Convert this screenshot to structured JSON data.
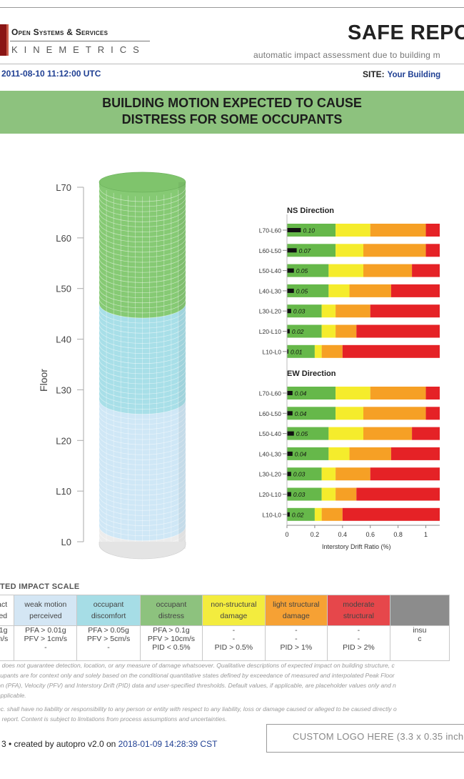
{
  "header": {
    "company_top": "Open Systems & Services",
    "company_bottom": "KINEMETRICS",
    "title": "SAFE REPO",
    "subtitle": "automatic impact assessment due to building m",
    "datetime": "2011-08-10 11:12:00 UTC",
    "site_label": "SITE:",
    "site_value": "Your Building"
  },
  "banner": {
    "line1": "BUILDING MOTION EXPECTED TO CAUSE",
    "line2": "DISTRESS FOR SOME OCCUPANTS"
  },
  "colors": {
    "green": "#66b84a",
    "yellow": "#f5ec2c",
    "orange": "#f6a025",
    "red": "#e52226",
    "building_green": "#86ca74",
    "building_cyan": "#a8dfe8",
    "building_lightblue": "#cfe7f6",
    "building_gray": "#ececec"
  },
  "building": {
    "ylabel": "Floor",
    "levels": [
      "L70",
      "L60",
      "L50",
      "L40",
      "L30",
      "L20",
      "L10",
      "L0"
    ],
    "zones": [
      {
        "name": "distress",
        "from": 47,
        "to": 71
      },
      {
        "name": "discomfort",
        "from": 28,
        "to": 47
      },
      {
        "name": "perceived",
        "from": 3,
        "to": 28
      },
      {
        "name": "none",
        "from": 0,
        "to": 3
      }
    ]
  },
  "chart_data": {
    "type": "bar",
    "xlabel": "Interstory Drift Ratio (%)",
    "xlim": [
      0,
      1.1
    ],
    "xticks": [
      "0",
      "0.2",
      "0.4",
      "0.6",
      "0.8",
      "1"
    ],
    "panels": [
      {
        "title": "NS Direction",
        "categories": [
          "L70-L60",
          "L60-L50",
          "L50-L40",
          "L40-L30",
          "L30-L20",
          "L20-L10",
          "L10-L0"
        ],
        "values": [
          0.1,
          0.07,
          0.05,
          0.05,
          0.03,
          0.02,
          0.01
        ],
        "labels": [
          "0.10",
          "0.07",
          "0.05",
          "0.05",
          "0.03",
          "0.02",
          "0.01"
        ],
        "thresholds": [
          [
            0.35,
            0.6,
            1.0
          ],
          [
            0.35,
            0.55,
            1.0
          ],
          [
            0.3,
            0.55,
            0.9
          ],
          [
            0.3,
            0.45,
            0.75
          ],
          [
            0.25,
            0.35,
            0.6
          ],
          [
            0.25,
            0.35,
            0.5
          ],
          [
            0.2,
            0.25,
            0.4
          ]
        ]
      },
      {
        "title": "EW Direction",
        "categories": [
          "L70-L60",
          "L60-L50",
          "L50-L40",
          "L40-L30",
          "L30-L20",
          "L20-L10",
          "L10-L0"
        ],
        "values": [
          0.04,
          0.04,
          0.05,
          0.04,
          0.03,
          0.03,
          0.02
        ],
        "labels": [
          "0.04",
          "0.04",
          "0.05",
          "0.04",
          "0.03",
          "0.03",
          "0.02"
        ],
        "thresholds": [
          [
            0.35,
            0.6,
            1.0
          ],
          [
            0.35,
            0.55,
            1.0
          ],
          [
            0.3,
            0.55,
            0.9
          ],
          [
            0.3,
            0.45,
            0.75
          ],
          [
            0.25,
            0.35,
            0.6
          ],
          [
            0.25,
            0.35,
            0.5
          ],
          [
            0.2,
            0.25,
            0.4
          ]
        ]
      }
    ]
  },
  "impact_scale": {
    "title": "TED IMPACT SCALE",
    "columns": [
      {
        "head": [
          "pact",
          "cted"
        ],
        "criteria": [
          ".01g",
          "cm/s",
          ""
        ],
        "color": "#ffffff"
      },
      {
        "head": [
          "weak motion",
          "perceived"
        ],
        "criteria": [
          "PFA > 0.01g",
          "PFV > 1cm/s",
          "-"
        ],
        "color": "#d4e6f4"
      },
      {
        "head": [
          "occupant",
          "discomfort"
        ],
        "criteria": [
          "PFA > 0.05g",
          "PFV > 5cm/s",
          "-"
        ],
        "color": "#a6dde6"
      },
      {
        "head": [
          "occupant",
          "distress"
        ],
        "criteria": [
          "PFA > 0.1g",
          "PFV > 10cm/s",
          "PID < 0.5%"
        ],
        "color": "#8dc27e"
      },
      {
        "head": [
          "non-structural",
          "damage"
        ],
        "criteria": [
          "-",
          "-",
          "PID > 0.5%"
        ],
        "color": "#f3ec3e"
      },
      {
        "head": [
          "light structural",
          "damage"
        ],
        "criteria": [
          "-",
          "-",
          "PID > 1%"
        ],
        "color": "#f6a134"
      },
      {
        "head": [
          "moderate",
          "structural"
        ],
        "criteria": [
          "-",
          "-",
          "PID > 2%"
        ],
        "color": "#e6474b"
      },
      {
        "head": [
          "",
          ""
        ],
        "criteria": [
          "",
          "insu",
          "c"
        ],
        "color": "#8c8c8c"
      }
    ]
  },
  "disclaimer": {
    "lines": [
      "s does not guarantee detection, location, or any measure of damage whatsoever. Qualitative descriptions of expected impact on building structure, c",
      "cupants are for context only and solely based on the conditional quantitative states defined by exceedance of measured and interpolated Peak Floor",
      "on (PFA), Velocity (PFV) and Interstory Drift (PID) data and user-specified thresholds. Default values, if applicable, are placeholder values only and n",
      "applicable."
    ],
    "lines2": [
      "nc. shall have no liability or responsibility to any person or entity with respect to any liability, loss or damage caused or alleged to be caused directly o",
      "s report. Content is subject to limitations from process assumptions and uncertainties."
    ]
  },
  "footer": {
    "prefix": "3  •  created by autopro v2.0 on",
    "timestamp": "2018-01-09 14:28:39 CST",
    "logo_text": "CUSTOM LOGO HERE (3.3 x 0.35 inche"
  }
}
